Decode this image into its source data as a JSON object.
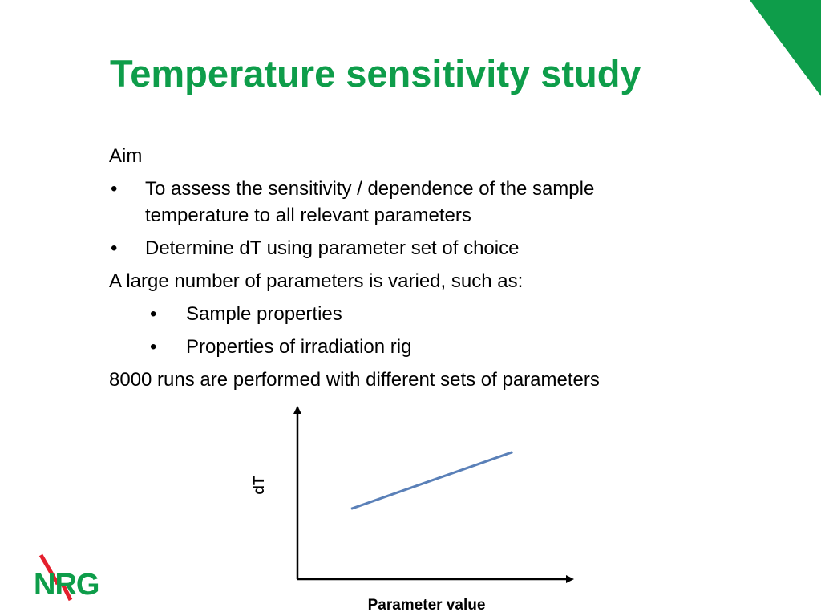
{
  "slide": {
    "title": "Temperature sensitivity study",
    "colors": {
      "accent_green": "#0e9d4a",
      "logo_red": "#e41f2d",
      "line_blue": "#5a80b8"
    }
  },
  "content": {
    "aim_heading": "Aim",
    "aim_bullets": [
      "To assess the sensitivity / dependence of the sample temperature to all relevant parameters",
      "Determine dT using parameter set of choice"
    ],
    "varied_intro": "A large number of parameters is varied, such as:",
    "varied_bullets": [
      "Sample properties",
      "Properties of irradiation rig"
    ],
    "runs_text": "8000 runs are performed with different sets of parameters",
    "bullet_glyph": "•"
  },
  "chart_data": {
    "type": "line",
    "title": "",
    "xlabel": "Parameter value",
    "ylabel": "dT",
    "series": [
      {
        "x": [
          0.25,
          1.0
        ],
        "y": [
          0.41,
          0.74
        ]
      }
    ],
    "xlim": [
      0,
      1.2
    ],
    "ylim": [
      0,
      1
    ],
    "grid": false,
    "ticks": false
  },
  "logo": {
    "text": "NRG",
    "icon": "nrg-logo"
  }
}
